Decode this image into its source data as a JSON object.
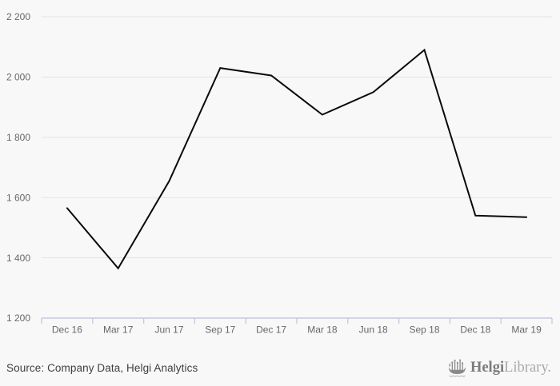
{
  "chart_data": {
    "type": "line",
    "title": "",
    "xlabel": "",
    "ylabel": "",
    "categories": [
      "Dec 16",
      "Mar 17",
      "Jun 17",
      "Sep 17",
      "Dec 17",
      "Mar 18",
      "Jun 18",
      "Sep 18",
      "Dec 18",
      "Mar 19"
    ],
    "values": [
      1565,
      1365,
      1655,
      2030,
      2005,
      1875,
      1950,
      2090,
      1540,
      1535
    ],
    "ylim": [
      1200,
      2200
    ],
    "ytick_step": 200,
    "ytick_labels": [
      "1 200",
      "1 400",
      "1 600",
      "1 800",
      "2 000",
      "2 200"
    ],
    "grid": true,
    "legend": "none",
    "line_color": "#0a0a0a",
    "grid_color": "#e4e4e4",
    "axis_color": "#c4cbe2",
    "tick_label_color": "#676767"
  },
  "footer": {
    "source_label": "Source: Company Data, Helgi Analytics",
    "logo": {
      "brand_primary": "Helgi",
      "brand_secondary": "Library.",
      "icon": "helgi-ship-icon"
    }
  },
  "colors": {
    "background": "#f8f8f8",
    "source_text": "#3f3f3f",
    "logo_primary": "#7b7b7b",
    "logo_secondary": "#a9a9a9",
    "logo_icon": "#8a8a8a"
  }
}
